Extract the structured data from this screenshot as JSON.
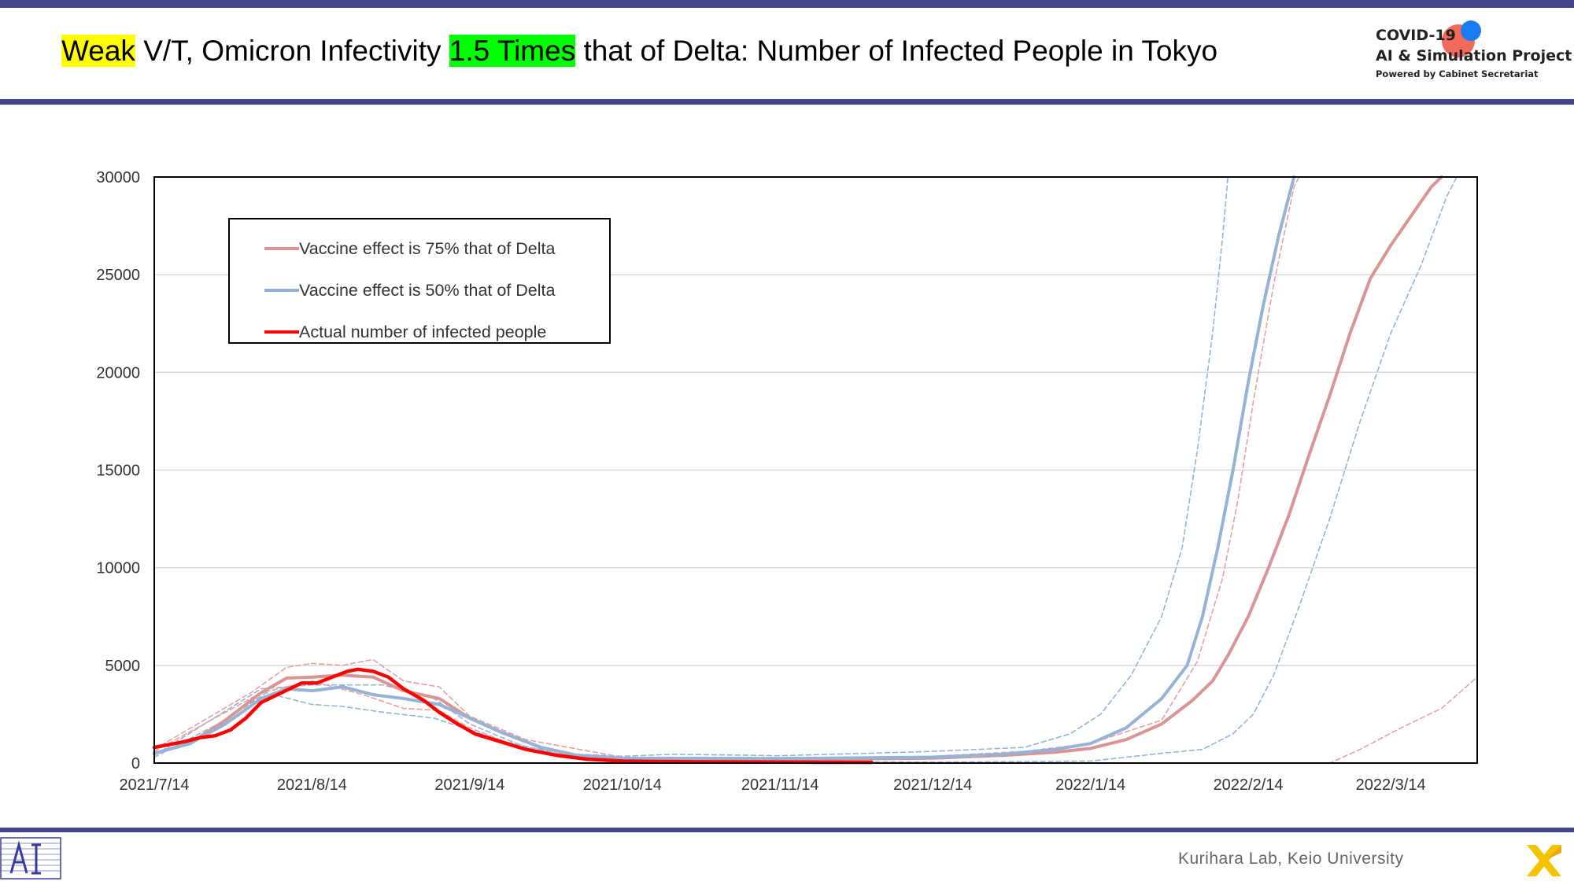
{
  "header": {
    "title_hl1": "Weak",
    "title_part2": " V/T, Omicron Infectivity ",
    "title_hl2": "1.5 Times",
    "title_part4": " that of Delta: Number of Infected People in Tokyo",
    "highlight_colors": {
      "yellow": "#ffff00",
      "green": "#00ff00"
    }
  },
  "brand": {
    "line1": "COVID-19",
    "line2": "AI & Simulation Project",
    "line3": "Powered by Cabinet Secretariat"
  },
  "footer": {
    "credit": "Kurihara Lab, Keio University"
  },
  "chart_data": {
    "type": "line",
    "title": "",
    "xlabel": "",
    "ylabel": "",
    "ylim": [
      0,
      30000
    ],
    "xlim": [
      "2021-07-14",
      "2022-03-31"
    ],
    "y_ticks": [
      "0",
      "5000",
      "10000",
      "15000",
      "20000",
      "25000",
      "30000"
    ],
    "x_ticks": [
      "2021/7/14",
      "2021/8/14",
      "2021/9/14",
      "2021/10/14",
      "2021/11/14",
      "2021/12/14",
      "2022/1/14",
      "2022/2/14",
      "2022/3/14"
    ],
    "grid": "horizontal",
    "legend_position": "top-left",
    "series": [
      {
        "name": "Vaccine effect is 75% that of Delta",
        "color": "#d99594",
        "style": "solid",
        "points": [
          [
            "2021-07-14",
            500
          ],
          [
            "2021-07-21",
            1000
          ],
          [
            "2021-07-28",
            2200
          ],
          [
            "2021-08-04",
            3600
          ],
          [
            "2021-08-09",
            4350
          ],
          [
            "2021-08-14",
            4400
          ],
          [
            "2021-08-20",
            4500
          ],
          [
            "2021-08-26",
            4400
          ],
          [
            "2021-09-01",
            3700
          ],
          [
            "2021-09-08",
            3300
          ],
          [
            "2021-09-14",
            2300
          ],
          [
            "2021-09-20",
            1600
          ],
          [
            "2021-09-28",
            800
          ],
          [
            "2021-10-05",
            400
          ],
          [
            "2021-10-14",
            200
          ],
          [
            "2021-11-14",
            180
          ],
          [
            "2021-12-14",
            250
          ],
          [
            "2021-12-28",
            400
          ],
          [
            "2022-01-07",
            550
          ],
          [
            "2022-01-14",
            750
          ],
          [
            "2022-01-21",
            1200
          ],
          [
            "2022-01-28",
            2000
          ],
          [
            "2022-02-03",
            3200
          ],
          [
            "2022-02-07",
            4200
          ],
          [
            "2022-02-10",
            5500
          ],
          [
            "2022-02-14",
            7500
          ],
          [
            "2022-02-18",
            10000
          ],
          [
            "2022-02-22",
            12700
          ],
          [
            "2022-02-26",
            15800
          ],
          [
            "2022-03-02",
            18800
          ],
          [
            "2022-03-06",
            22000
          ],
          [
            "2022-03-10",
            24800
          ],
          [
            "2022-03-14",
            26500
          ],
          [
            "2022-03-18",
            28000
          ],
          [
            "2022-03-22",
            29500
          ],
          [
            "2022-03-24",
            30000
          ]
        ]
      },
      {
        "name": "Vaccine effect is 50% that of Delta",
        "color": "#95b3d7",
        "style": "solid",
        "points": [
          [
            "2021-07-14",
            500
          ],
          [
            "2021-07-21",
            1000
          ],
          [
            "2021-07-28",
            2000
          ],
          [
            "2021-08-04",
            3300
          ],
          [
            "2021-08-09",
            3800
          ],
          [
            "2021-08-14",
            3700
          ],
          [
            "2021-08-20",
            3900
          ],
          [
            "2021-08-26",
            3500
          ],
          [
            "2021-09-01",
            3300
          ],
          [
            "2021-09-08",
            3000
          ],
          [
            "2021-09-14",
            2300
          ],
          [
            "2021-09-20",
            1600
          ],
          [
            "2021-09-28",
            800
          ],
          [
            "2021-10-05",
            400
          ],
          [
            "2021-10-14",
            250
          ],
          [
            "2021-11-14",
            230
          ],
          [
            "2021-12-14",
            300
          ],
          [
            "2021-12-28",
            450
          ],
          [
            "2022-01-07",
            700
          ],
          [
            "2022-01-14",
            1000
          ],
          [
            "2022-01-21",
            1800
          ],
          [
            "2022-01-28",
            3300
          ],
          [
            "2022-02-02",
            5000
          ],
          [
            "2022-02-05",
            7500
          ],
          [
            "2022-02-08",
            11000
          ],
          [
            "2022-02-11",
            15000
          ],
          [
            "2022-02-14",
            19500
          ],
          [
            "2022-02-17",
            23500
          ],
          [
            "2022-02-20",
            27000
          ],
          [
            "2022-02-23",
            30000
          ]
        ]
      },
      {
        "name": "Actual number of infected people",
        "color": "#ff0000",
        "style": "solid",
        "points": [
          [
            "2021-07-14",
            800
          ],
          [
            "2021-07-17",
            950
          ],
          [
            "2021-07-20",
            1100
          ],
          [
            "2021-07-23",
            1300
          ],
          [
            "2021-07-26",
            1400
          ],
          [
            "2021-07-29",
            1700
          ],
          [
            "2021-08-01",
            2300
          ],
          [
            "2021-08-04",
            3100
          ],
          [
            "2021-08-08",
            3600
          ],
          [
            "2021-08-12",
            4100
          ],
          [
            "2021-08-15",
            4100
          ],
          [
            "2021-08-18",
            4400
          ],
          [
            "2021-08-21",
            4700
          ],
          [
            "2021-08-23",
            4800
          ],
          [
            "2021-08-26",
            4700
          ],
          [
            "2021-08-29",
            4400
          ],
          [
            "2021-09-01",
            3800
          ],
          [
            "2021-09-05",
            3200
          ],
          [
            "2021-09-08",
            2600
          ],
          [
            "2021-09-11",
            2100
          ],
          [
            "2021-09-15",
            1500
          ],
          [
            "2021-09-20",
            1100
          ],
          [
            "2021-09-25",
            700
          ],
          [
            "2021-10-01",
            400
          ],
          [
            "2021-10-07",
            200
          ],
          [
            "2021-10-14",
            100
          ],
          [
            "2021-10-30",
            60
          ],
          [
            "2021-11-14",
            50
          ],
          [
            "2021-12-02",
            40
          ]
        ]
      },
      {
        "name": "",
        "color": "#95b3d7",
        "style": "dashed",
        "points": [
          [
            "2021-07-14",
            300
          ],
          [
            "2021-07-28",
            2200
          ],
          [
            "2021-08-05",
            3600
          ],
          [
            "2021-08-14",
            3000
          ],
          [
            "2021-08-20",
            2900
          ],
          [
            "2021-08-28",
            2600
          ],
          [
            "2021-09-07",
            2300
          ],
          [
            "2021-09-14",
            1700
          ],
          [
            "2021-09-21",
            1100
          ],
          [
            "2021-10-01",
            500
          ],
          [
            "2021-10-14",
            350
          ],
          [
            "2021-10-24",
            450
          ],
          [
            "2021-11-14",
            380
          ],
          [
            "2021-12-01",
            500
          ],
          [
            "2021-12-14",
            600
          ],
          [
            "2022-01-01",
            800
          ],
          [
            "2022-01-10",
            1500
          ],
          [
            "2022-01-16",
            2500
          ],
          [
            "2022-01-22",
            4500
          ],
          [
            "2022-01-28",
            7500
          ],
          [
            "2022-02-01",
            11000
          ],
          [
            "2022-02-04",
            16000
          ],
          [
            "2022-02-07",
            22000
          ],
          [
            "2022-02-09",
            27000
          ],
          [
            "2022-02-10",
            30000
          ]
        ]
      },
      {
        "name": "",
        "color": "#95b3d7",
        "style": "dashed",
        "points": [
          [
            "2021-07-14",
            400
          ],
          [
            "2021-08-04",
            3800
          ],
          [
            "2021-08-14",
            4000
          ],
          [
            "2021-08-20",
            4000
          ],
          [
            "2021-08-28",
            4000
          ],
          [
            "2021-09-07",
            3300
          ],
          [
            "2021-09-14",
            2000
          ],
          [
            "2021-09-25",
            800
          ],
          [
            "2021-10-14",
            150
          ],
          [
            "2021-12-14",
            50
          ],
          [
            "2022-01-14",
            100
          ],
          [
            "2022-01-28",
            500
          ],
          [
            "2022-02-05",
            700
          ],
          [
            "2022-02-11",
            1500
          ],
          [
            "2022-02-15",
            2500
          ],
          [
            "2022-02-19",
            4500
          ],
          [
            "2022-02-24",
            8000
          ],
          [
            "2022-03-02",
            12500
          ],
          [
            "2022-03-08",
            17500
          ],
          [
            "2022-03-14",
            22000
          ],
          [
            "2022-03-20",
            25500
          ],
          [
            "2022-03-25",
            29000
          ],
          [
            "2022-03-27",
            30000
          ]
        ]
      },
      {
        "name": "",
        "color": "#e8a0a0",
        "style": "dashed",
        "points": [
          [
            "2021-07-14",
            700
          ],
          [
            "2021-08-02",
            3600
          ],
          [
            "2021-08-09",
            4900
          ],
          [
            "2021-08-14",
            5100
          ],
          [
            "2021-08-20",
            5000
          ],
          [
            "2021-08-26",
            5300
          ],
          [
            "2021-09-01",
            4200
          ],
          [
            "2021-09-08",
            3900
          ],
          [
            "2021-09-14",
            2400
          ],
          [
            "2021-09-25",
            1200
          ],
          [
            "2021-10-14",
            300
          ],
          [
            "2021-11-14",
            150
          ],
          [
            "2021-12-14",
            350
          ],
          [
            "2022-01-01",
            600
          ],
          [
            "2022-01-14",
            1000
          ],
          [
            "2022-01-28",
            2200
          ],
          [
            "2022-02-04",
            5200
          ],
          [
            "2022-02-09",
            9500
          ],
          [
            "2022-02-12",
            13500
          ],
          [
            "2022-02-15",
            18500
          ],
          [
            "2022-02-19",
            24500
          ],
          [
            "2022-02-23",
            29500
          ],
          [
            "2022-02-24",
            30000
          ]
        ]
      },
      {
        "name": "",
        "color": "#e8a0a0",
        "style": "dashed",
        "points": [
          [
            "2021-07-14",
            600
          ],
          [
            "2021-08-04",
            3600
          ],
          [
            "2021-08-14",
            4200
          ],
          [
            "2021-08-24",
            3500
          ],
          [
            "2021-09-01",
            2800
          ],
          [
            "2021-09-08",
            2700
          ],
          [
            "2021-09-14",
            1800
          ],
          [
            "2021-09-25",
            700
          ],
          [
            "2021-10-14",
            60
          ],
          [
            "2021-11-14",
            30
          ],
          [
            "2022-03-02",
            0
          ],
          [
            "2022-03-08",
            700
          ],
          [
            "2022-03-16",
            1800
          ],
          [
            "2022-03-24",
            2800
          ],
          [
            "2022-03-31",
            4400
          ]
        ]
      }
    ]
  },
  "legend": [
    {
      "label": "Vaccine effect is 75% that of Delta",
      "color": "#d99594"
    },
    {
      "label": "Vaccine effect is 50% that of Delta",
      "color": "#95b3d7"
    },
    {
      "label": "Actual number of infected people",
      "color": "#ff0000"
    }
  ]
}
